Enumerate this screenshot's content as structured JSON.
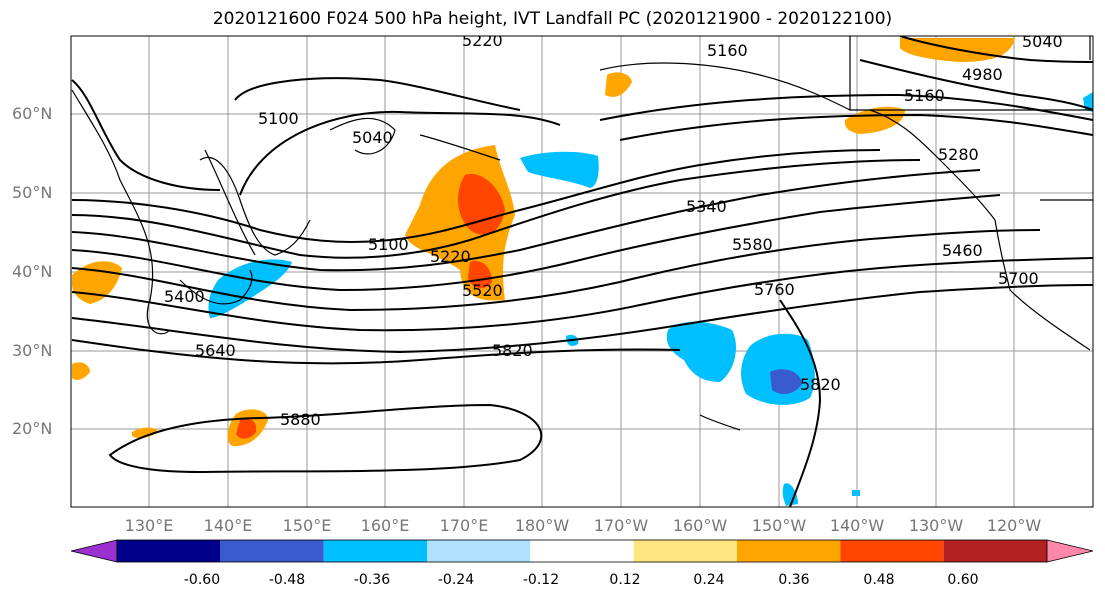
{
  "title": "2020121600 F024 500 hPa height, IVT Landfall PC (2020121900 - 2020122100)",
  "lat_labels": [
    "60°N",
    "50°N",
    "40°N",
    "30°N",
    "20°N"
  ],
  "lon_labels": [
    "130°E",
    "140°E",
    "150°E",
    "160°E",
    "170°E",
    "180°W",
    "170°W",
    "160°W",
    "150°W",
    "140°W",
    "130°W",
    "120°W"
  ],
  "contour_labels": [
    "5220",
    "5160",
    "5040",
    "4980",
    "5100",
    "5040",
    "5160",
    "5280",
    "5100",
    "5340",
    "5220",
    "5580",
    "5460",
    "5520",
    "5760",
    "5700",
    "5400",
    "5640",
    "5820",
    "5820",
    "5880"
  ],
  "colorbar": {
    "ticks": [
      "-0.60",
      "-0.48",
      "-0.36",
      "-0.24",
      "-0.12",
      "0.12",
      "0.24",
      "0.36",
      "0.48",
      "0.60"
    ],
    "colors": [
      "#9b30d0",
      "#00008b",
      "#3a5bcf",
      "#00bfff",
      "#b0e0ff",
      "#ffffff",
      "#ffe680",
      "#ffa500",
      "#ff4500",
      "#b22222",
      "#ff88aa"
    ]
  }
}
